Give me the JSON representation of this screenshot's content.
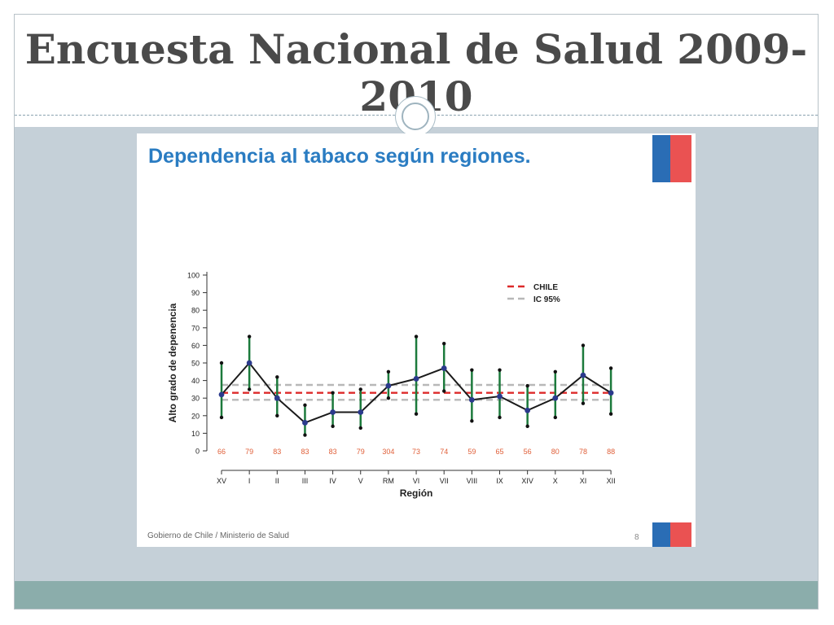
{
  "page": {
    "title": "Encuesta Nacional de Salud 2009-2010"
  },
  "slide": {
    "title": "Dependencia al tabaco según regiones.",
    "footer_left": "Gobierno de Chile / Ministerio de Salud",
    "page_number": "8"
  },
  "chart_data": {
    "type": "line",
    "title": "",
    "xlabel": "Región",
    "ylabel": "Alto grado de depenencia",
    "ylim": [
      0,
      100
    ],
    "yticks": [
      0,
      10,
      20,
      30,
      40,
      50,
      60,
      70,
      80,
      90,
      100
    ],
    "categories": [
      "XV",
      "I",
      "II",
      "III",
      "IV",
      "V",
      "RM",
      "VI",
      "VII",
      "VIII",
      "IX",
      "XIV",
      "X",
      "XI",
      "XII"
    ],
    "sample_sizes": [
      "66",
      "79",
      "83",
      "83",
      "83",
      "79",
      "304",
      "73",
      "74",
      "59",
      "65",
      "56",
      "80",
      "78",
      "88"
    ],
    "series": [
      {
        "type": "line-with-error-bars",
        "values": [
          32,
          50,
          30,
          16,
          22,
          22,
          37,
          41,
          47,
          29,
          31,
          23,
          30,
          43,
          33
        ],
        "lower": [
          19,
          35,
          20,
          9,
          14,
          13,
          30,
          21,
          34,
          17,
          19,
          14,
          19,
          27,
          21
        ],
        "upper": [
          50,
          65,
          42,
          26,
          33,
          35,
          45,
          65,
          61,
          46,
          46,
          37,
          45,
          60,
          47
        ]
      }
    ],
    "reference_lines": [
      {
        "name": "CHILE",
        "value": 33,
        "style": "dashed",
        "color": "#dd2a2a"
      },
      {
        "name": "IC 95%",
        "values": [
          29,
          37.5
        ],
        "style": "dashed",
        "color": "#b8b8b8"
      }
    ],
    "legend": {
      "position": "top-right",
      "entries": [
        "CHILE",
        "IC 95%"
      ]
    },
    "colors": {
      "line": "#1a1a1a",
      "error_bar": "#1c7a3c",
      "point": "#2b3a8c",
      "sample_size_text": "#e0603a"
    }
  }
}
